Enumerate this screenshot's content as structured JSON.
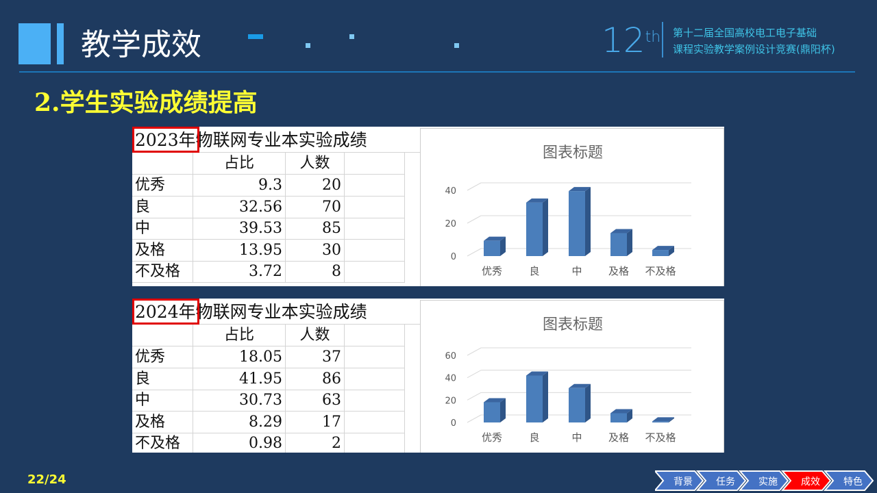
{
  "header": {
    "title": "教学成效",
    "logo_number": "12",
    "logo_suffix": "th",
    "logo_line1": "第十二届全国高校电工电子基础",
    "logo_line2": "课程实验教学案例设计竞赛(鼎阳杯)"
  },
  "subtitle": "2.学生实验成绩提高",
  "page_number": "22/24",
  "nav": {
    "items": [
      {
        "label": "背景",
        "active": false
      },
      {
        "label": "任务",
        "active": false
      },
      {
        "label": "实施",
        "active": false
      },
      {
        "label": "成效",
        "active": true
      },
      {
        "label": "特色",
        "active": false
      }
    ],
    "colors": {
      "normal": "#4472c4",
      "active": "#ff0000"
    }
  },
  "panels": [
    {
      "title_year": "2023年",
      "title_rest": "物联网专业本实验成绩",
      "columns": [
        "",
        "占比",
        "人数"
      ],
      "rows": [
        [
          "优秀",
          "9.3",
          "20"
        ],
        [
          "良",
          "32.56",
          "70"
        ],
        [
          "中",
          "39.53",
          "85"
        ],
        [
          "及格",
          "13.95",
          "30"
        ],
        [
          "不及格",
          "3.72",
          "8"
        ]
      ]
    },
    {
      "title_year": "2024年",
      "title_rest": "物联网专业本实验成绩",
      "columns": [
        "",
        "占比",
        "人数"
      ],
      "rows": [
        [
          "优秀",
          "18.05",
          "37"
        ],
        [
          "良",
          "41.95",
          "86"
        ],
        [
          "中",
          "30.73",
          "63"
        ],
        [
          "及格",
          "8.29",
          "17"
        ],
        [
          "不及格",
          "0.98",
          "2"
        ]
      ]
    }
  ],
  "chart_data": [
    {
      "type": "bar",
      "title": "图表标题",
      "categories": [
        "优秀",
        "良",
        "中",
        "及格",
        "不及格"
      ],
      "values": [
        9.3,
        32.56,
        39.53,
        13.95,
        3.72
      ],
      "ylim": [
        0,
        40
      ],
      "yticks": [
        "0",
        "20",
        "40"
      ],
      "grid": true,
      "style": "3d-column",
      "color": "#4a7ebb"
    },
    {
      "type": "bar",
      "title": "图表标题",
      "categories": [
        "优秀",
        "良",
        "中",
        "及格",
        "不及格"
      ],
      "values": [
        18.05,
        41.95,
        30.73,
        8.29,
        0.98
      ],
      "ylim": [
        0,
        60
      ],
      "yticks": [
        "0",
        "20",
        "40",
        "60"
      ],
      "grid": true,
      "style": "3d-column",
      "color": "#4a7ebb"
    }
  ]
}
